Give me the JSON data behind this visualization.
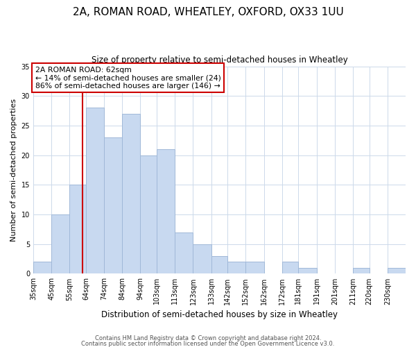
{
  "title_line1": "2A, ROMAN ROAD, WHEATLEY, OXFORD, OX33 1UU",
  "title_line2": "Size of property relative to semi-detached houses in Wheatley",
  "xlabel": "Distribution of semi-detached houses by size in Wheatley",
  "ylabel": "Number of semi-detached properties",
  "bin_labels": [
    "35sqm",
    "45sqm",
    "55sqm",
    "64sqm",
    "74sqm",
    "84sqm",
    "94sqm",
    "103sqm",
    "113sqm",
    "123sqm",
    "133sqm",
    "142sqm",
    "152sqm",
    "162sqm",
    "172sqm",
    "181sqm",
    "191sqm",
    "201sqm",
    "211sqm",
    "220sqm",
    "230sqm"
  ],
  "bin_edges": [
    35,
    45,
    55,
    64,
    74,
    84,
    94,
    103,
    113,
    123,
    133,
    142,
    152,
    162,
    172,
    181,
    191,
    201,
    211,
    220,
    230,
    240
  ],
  "bar_values": [
    2,
    10,
    15,
    28,
    23,
    27,
    20,
    21,
    7,
    5,
    3,
    2,
    2,
    0,
    2,
    1,
    0,
    0,
    1,
    0,
    1
  ],
  "bar_color": "#c8d9f0",
  "bar_edge_color": "#a0b8d8",
  "property_line_x": 62,
  "annotation_title": "2A ROMAN ROAD: 62sqm",
  "annotation_line1": "← 14% of semi-detached houses are smaller (24)",
  "annotation_line2": "86% of semi-detached houses are larger (146) →",
  "annotation_box_color": "#ffffff",
  "annotation_box_edge": "#cc0000",
  "property_line_color": "#cc0000",
  "ylim": [
    0,
    35
  ],
  "yticks": [
    0,
    5,
    10,
    15,
    20,
    25,
    30,
    35
  ],
  "footer_line1": "Contains HM Land Registry data © Crown copyright and database right 2024.",
  "footer_line2": "Contains public sector information licensed under the Open Government Licence v3.0."
}
